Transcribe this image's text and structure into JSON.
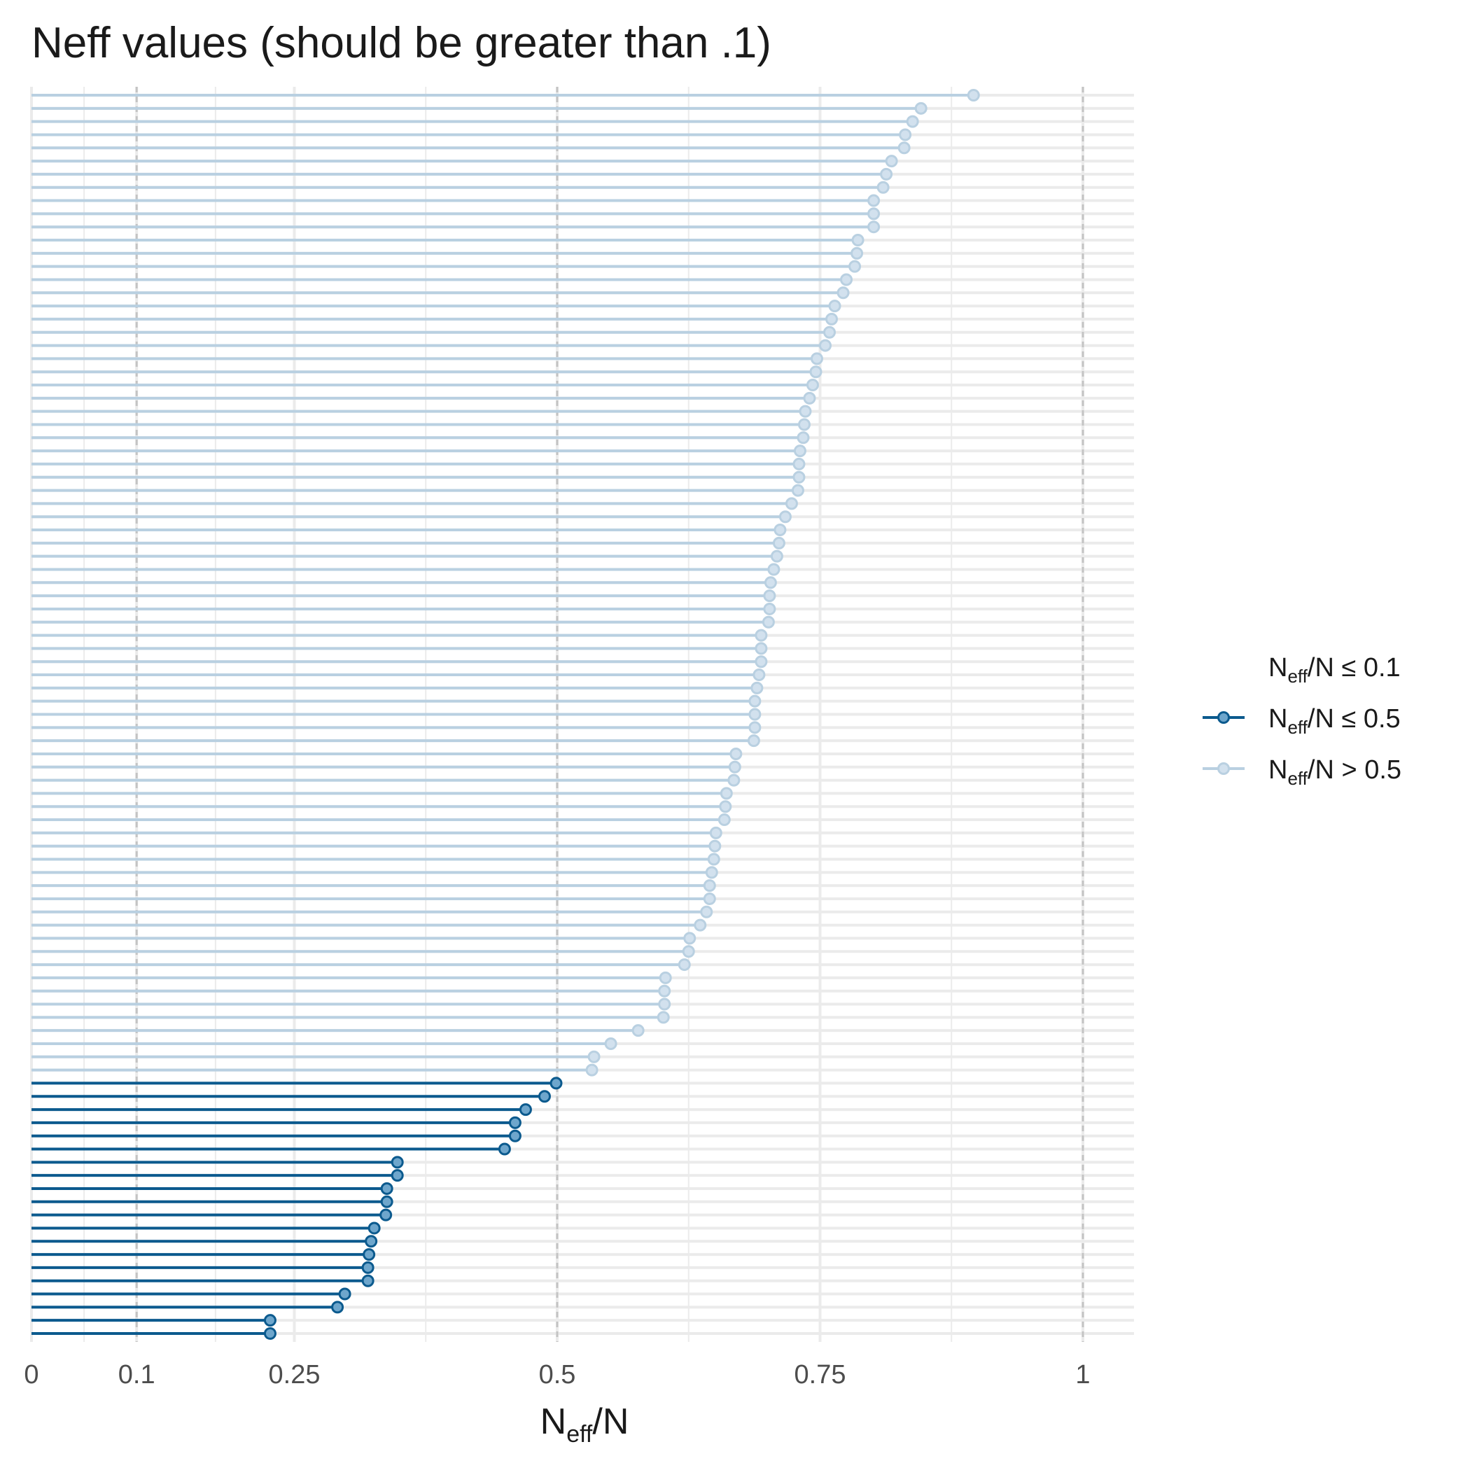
{
  "chart_data": {
    "type": "lollipop",
    "title": "Neff values (should be greater than .1)",
    "xlabel": {
      "main": "N",
      "sub": "eff",
      "suffix": "/N"
    },
    "xlim": [
      0,
      1.05
    ],
    "x_ticks": [
      {
        "value": 0,
        "label": "0"
      },
      {
        "value": 0.1,
        "label": "0.1"
      },
      {
        "value": 0.25,
        "label": "0.25"
      },
      {
        "value": 0.5,
        "label": "0.5"
      },
      {
        "value": 0.75,
        "label": "0.75"
      },
      {
        "value": 1,
        "label": "1"
      }
    ],
    "minor_gridlines": [
      0.05,
      0.175,
      0.375,
      0.625,
      0.875
    ],
    "dashed_reference_lines": [
      0.1,
      0.5,
      1
    ],
    "grid": true,
    "legend": {
      "placement": "right",
      "entries": [
        {
          "key": "le01",
          "label_prefix": "N",
          "label_sub": "eff",
          "label_suffix": "/N ≤ 0.1"
        },
        {
          "key": "le05",
          "label_prefix": "N",
          "label_sub": "eff",
          "label_suffix": "/N ≤ 0.5"
        },
        {
          "key": "gt05",
          "label_prefix": "N",
          "label_sub": "eff",
          "label_suffix": "/N > 0.5"
        }
      ]
    },
    "colors": {
      "le01": "#d9d9d9",
      "le05_line": "#0b5a8e",
      "le05_fill": "#6ea6cc",
      "gt05_line": "#b9d0e1",
      "gt05_fill": "#d2e1ee",
      "gridline": "#ebebeb",
      "dashed": "#c4c4c4"
    },
    "values": [
      0.896,
      0.846,
      0.838,
      0.831,
      0.83,
      0.818,
      0.813,
      0.81,
      0.801,
      0.801,
      0.801,
      0.786,
      0.785,
      0.783,
      0.775,
      0.772,
      0.764,
      0.761,
      0.759,
      0.755,
      0.747,
      0.746,
      0.743,
      0.74,
      0.736,
      0.735,
      0.734,
      0.731,
      0.73,
      0.73,
      0.729,
      0.723,
      0.717,
      0.712,
      0.711,
      0.709,
      0.706,
      0.703,
      0.702,
      0.702,
      0.701,
      0.694,
      0.694,
      0.694,
      0.692,
      0.69,
      0.688,
      0.688,
      0.688,
      0.687,
      0.67,
      0.669,
      0.668,
      0.661,
      0.66,
      0.659,
      0.651,
      0.65,
      0.649,
      0.647,
      0.645,
      0.645,
      0.642,
      0.636,
      0.626,
      0.625,
      0.621,
      0.603,
      0.602,
      0.602,
      0.601,
      0.577,
      0.551,
      0.535,
      0.533,
      0.499,
      0.488,
      0.47,
      0.46,
      0.46,
      0.45,
      0.348,
      0.348,
      0.338,
      0.338,
      0.337,
      0.326,
      0.323,
      0.321,
      0.32,
      0.32,
      0.298,
      0.291,
      0.227,
      0.227
    ]
  }
}
